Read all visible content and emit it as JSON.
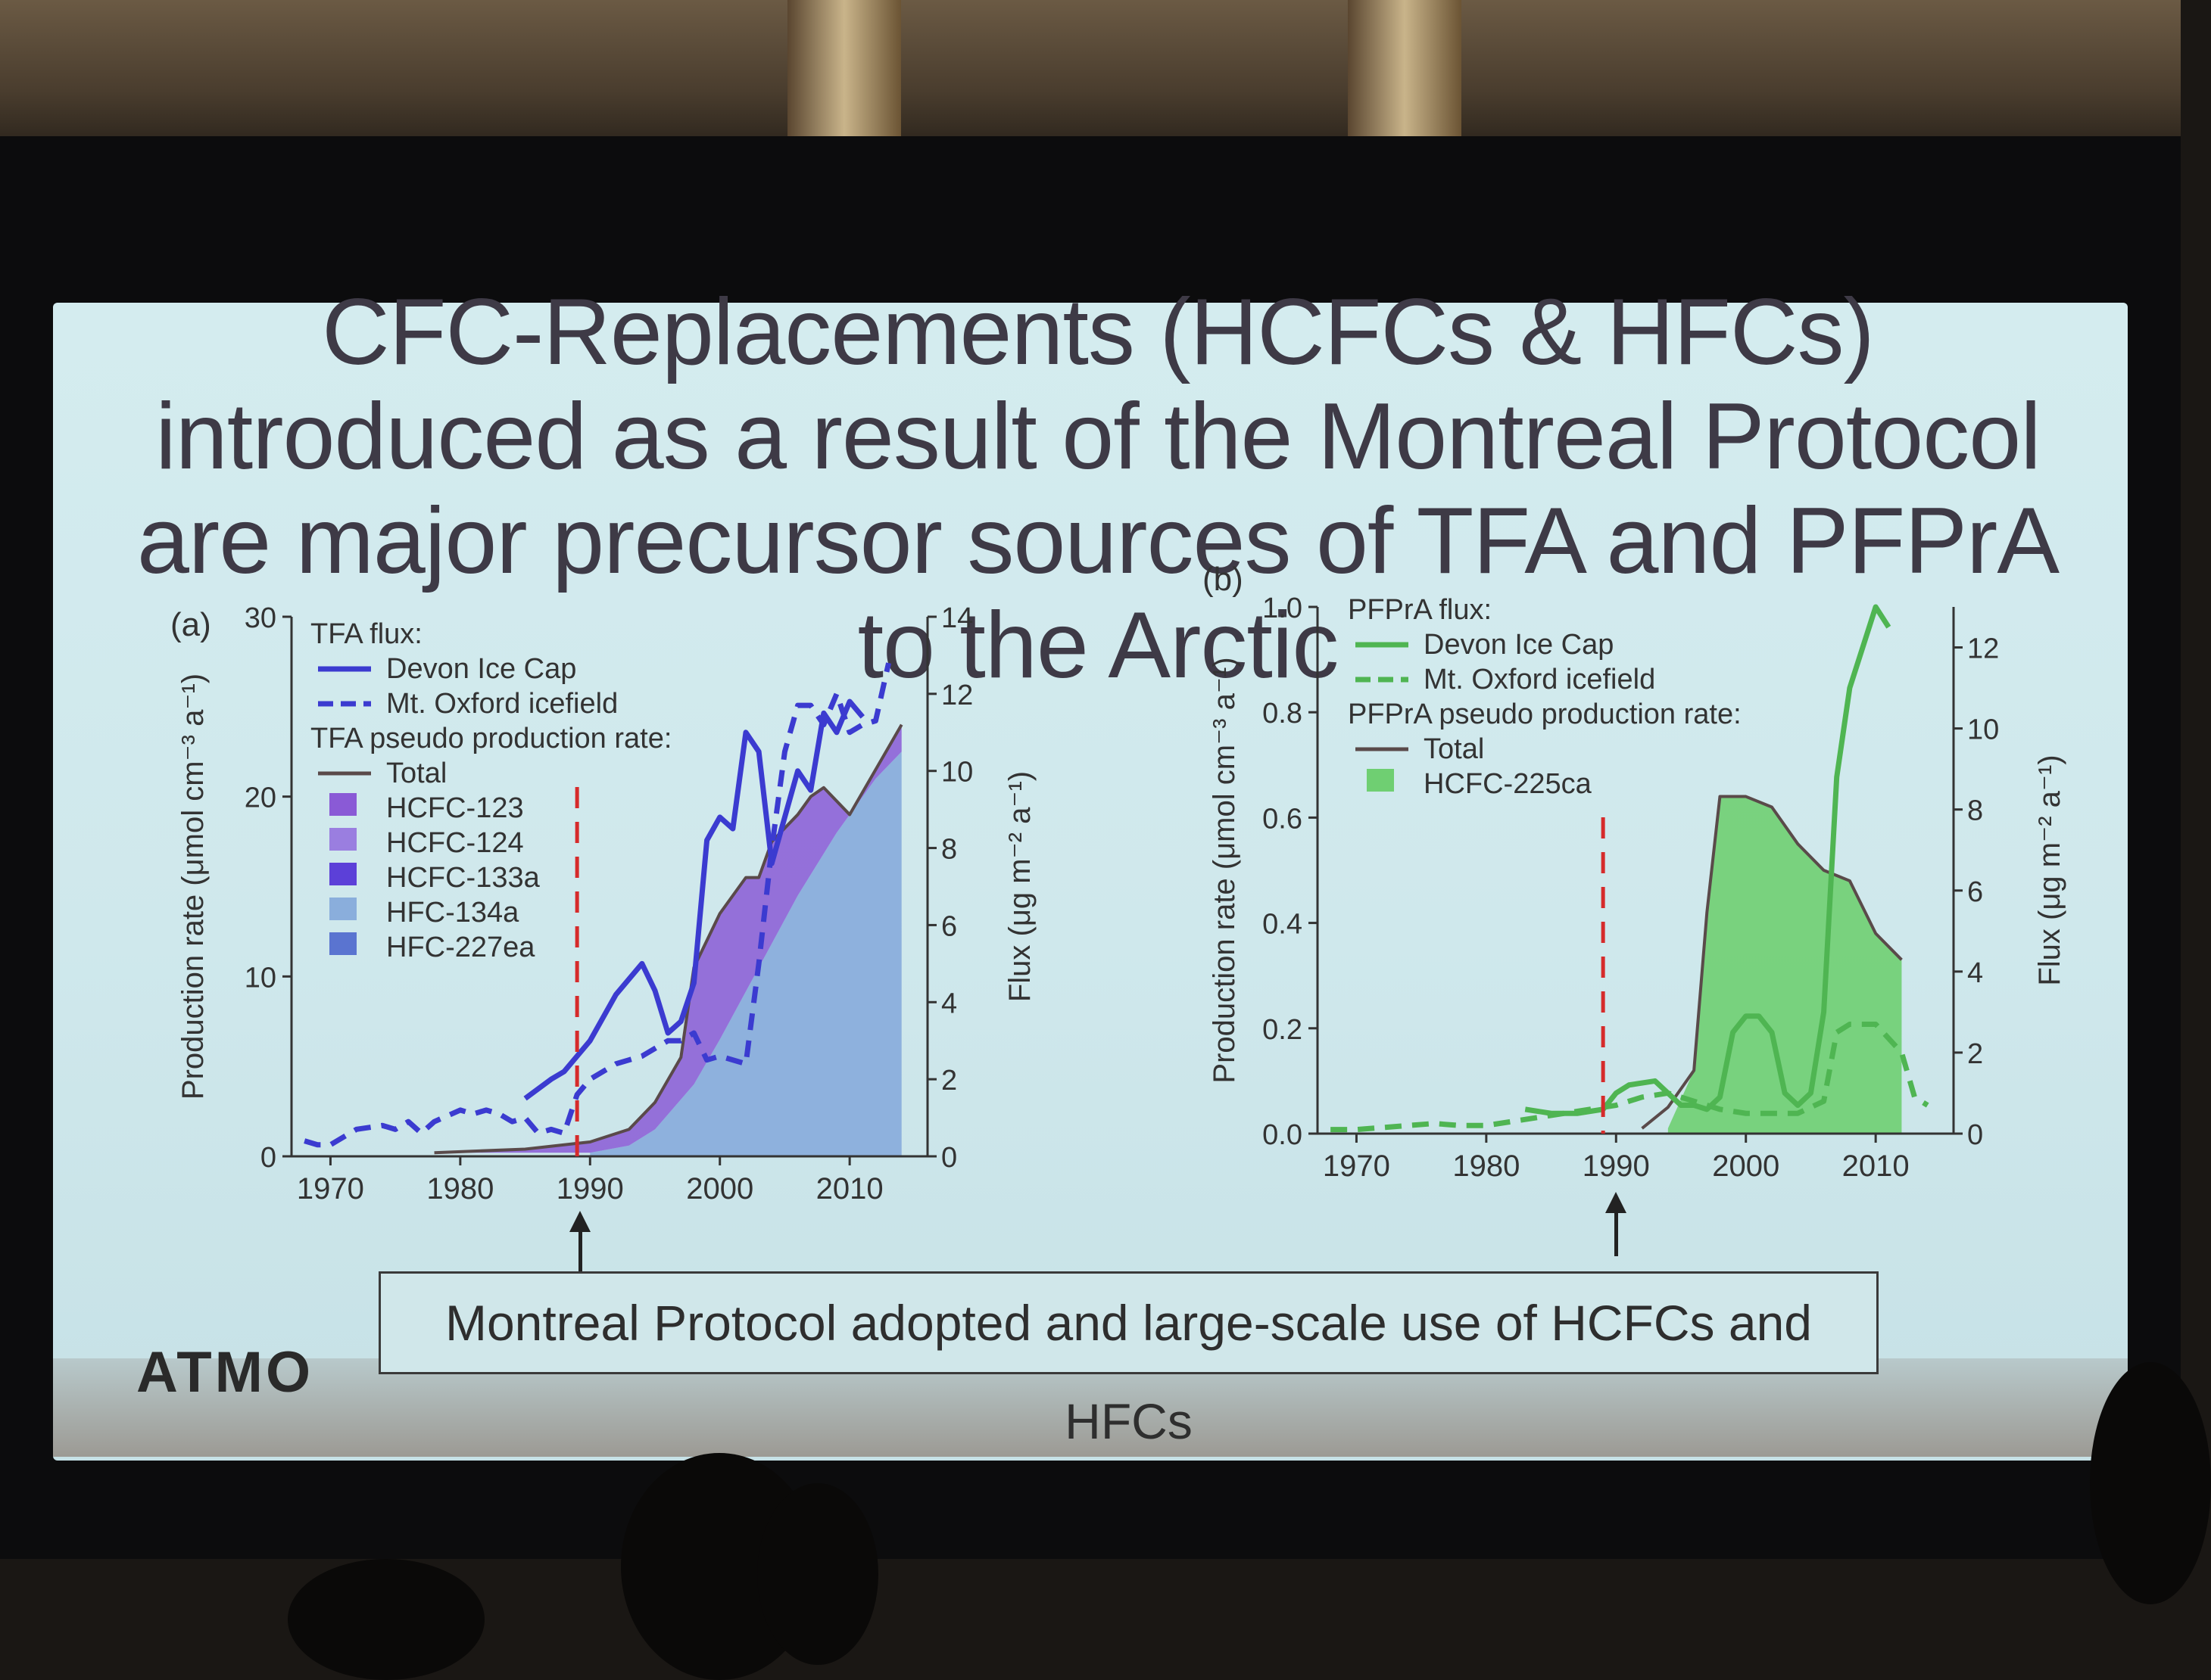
{
  "slide": {
    "title": "CFC-Replacements (HCFCs & HFCs) introduced as a result of the Montreal Protocol are major precursor sources of TFA and PFPrA to the Arctic",
    "annotation": "Montreal Protocol adopted and large-scale use of HCFCs and HFCs",
    "logo_text": "ATMO"
  },
  "colors": {
    "devon_tfa": "#3b3bd0",
    "devon_pfpra": "#4fb552",
    "total_line": "#5a4a4a",
    "hcfc123": "#8a5ad6",
    "hcfc124": "#9a7ee0",
    "hcfc133a": "#5c40d8",
    "hfc134a": "#8aaedc",
    "hfc227ea": "#5a74d0",
    "hcfc225ca": "#6fcf72",
    "marker": "#d62b2b"
  },
  "chart_data": [
    {
      "type": "area",
      "panel": "(a)",
      "ylabel": "Production rate (μmol cm⁻³ a⁻¹)",
      "y2label": "Flux (μg m⁻² a⁻¹)",
      "xlim": [
        1967,
        2016
      ],
      "ylim": [
        0,
        30
      ],
      "y2lim": [
        0,
        14
      ],
      "xticks": [
        "1970",
        "1980",
        "1990",
        "2000",
        "2010"
      ],
      "yticks": [
        "0",
        "10",
        "20",
        "30"
      ],
      "y2ticks": [
        "0",
        "2",
        "4",
        "6",
        "8",
        "10",
        "12",
        "14"
      ],
      "marker_year": 1989,
      "legend": {
        "flux_header": "TFA flux:",
        "flux_entries": [
          "Devon Ice Cap",
          "Mt. Oxford icefield"
        ],
        "production_header": "TFA pseudo production rate:",
        "production_entries": [
          "Total",
          "HCFC-123",
          "HCFC-124",
          "HCFC-133a",
          "HFC-134a",
          "HFC-227ea"
        ]
      },
      "series": [
        {
          "name": "Total",
          "axis": "left",
          "style": "line",
          "x": [
            1978,
            1985,
            1990,
            1993,
            1995,
            1997,
            1998,
            2000,
            2002,
            2003,
            2004,
            2006,
            2007,
            2008,
            2010,
            2012,
            2014
          ],
          "y": [
            0.2,
            0.4,
            0.8,
            1.5,
            3.0,
            5.5,
            10.5,
            13.5,
            15.5,
            15.5,
            17.5,
            19.0,
            20.0,
            20.5,
            19.0,
            21.5,
            24.0
          ]
        },
        {
          "name": "HFC-134a",
          "axis": "left",
          "style": "area",
          "x": [
            1990,
            1993,
            1995,
            1998,
            2000,
            2003,
            2006,
            2009,
            2012,
            2014
          ],
          "y": [
            0.2,
            0.6,
            1.5,
            4.0,
            6.5,
            10.5,
            14.5,
            18.0,
            21.0,
            22.5
          ]
        },
        {
          "name": "Devon Ice Cap",
          "axis": "right",
          "style": "solid",
          "x": [
            1985,
            1987,
            1988,
            1990,
            1992,
            1993,
            1994,
            1995,
            1996,
            1997,
            1998,
            1999,
            2000,
            2001,
            2002,
            2003,
            2004,
            2005,
            2006,
            2007,
            2008,
            2009,
            2010,
            2011
          ],
          "y": [
            1.5,
            2.0,
            2.2,
            3.0,
            4.2,
            4.6,
            5.0,
            4.3,
            3.2,
            3.5,
            4.5,
            8.2,
            8.8,
            8.5,
            11.0,
            10.5,
            7.6,
            8.8,
            10.0,
            9.5,
            11.5,
            11.0,
            11.8,
            11.4
          ]
        },
        {
          "name": "Mt. Oxford icefield",
          "axis": "right",
          "style": "dashed",
          "x": [
            1968,
            1969,
            1970,
            1972,
            1974,
            1975,
            1976,
            1977,
            1978,
            1980,
            1981,
            1982,
            1983,
            1984,
            1985,
            1986,
            1987,
            1988,
            1989,
            1990,
            1992,
            1994,
            1996,
            1997,
            1998,
            1999,
            2000,
            2002,
            2003,
            2004,
            2005,
            2006,
            2007,
            2008,
            2009,
            2010,
            2011,
            2012,
            2013
          ],
          "y": [
            0.4,
            0.3,
            0.3,
            0.7,
            0.8,
            0.7,
            0.9,
            0.6,
            0.9,
            1.2,
            1.1,
            1.2,
            1.1,
            0.9,
            1.0,
            0.6,
            0.7,
            0.6,
            1.6,
            2.0,
            2.4,
            2.6,
            3.0,
            3.0,
            3.2,
            2.5,
            2.6,
            2.4,
            5.0,
            8.0,
            10.5,
            11.7,
            11.7,
            11.2,
            12.0,
            11.0,
            11.2,
            11.3,
            12.8
          ]
        }
      ]
    },
    {
      "type": "area",
      "panel": "(b)",
      "ylabel": "Production rate (μmol cm⁻³ a⁻¹)",
      "y2label": "Flux (μg m⁻² a⁻¹)",
      "xlim": [
        1967,
        2016
      ],
      "ylim": [
        0,
        1.0
      ],
      "y2lim": [
        0,
        13
      ],
      "xticks": [
        "1970",
        "1980",
        "1990",
        "2000",
        "2010"
      ],
      "yticks": [
        "0.0",
        "0.2",
        "0.4",
        "0.6",
        "0.8",
        "1.0"
      ],
      "y2ticks": [
        "0",
        "2",
        "4",
        "6",
        "8",
        "10",
        "12"
      ],
      "marker_year": 1989,
      "legend": {
        "flux_header": "PFPrA flux:",
        "flux_entries": [
          "Devon Ice Cap",
          "Mt. Oxford icefield"
        ],
        "production_header": "PFPrA pseudo production rate:",
        "production_entries": [
          "Total",
          "HCFC-225ca"
        ]
      },
      "series": [
        {
          "name": "Total",
          "axis": "left",
          "style": "line",
          "x": [
            1992,
            1994,
            1996,
            1997,
            1998,
            2000,
            2002,
            2004,
            2006,
            2008,
            2010,
            2012
          ],
          "y": [
            0.01,
            0.05,
            0.12,
            0.42,
            0.64,
            0.64,
            0.62,
            0.55,
            0.5,
            0.48,
            0.38,
            0.33
          ]
        },
        {
          "name": "HCFC-225ca",
          "axis": "left",
          "style": "area",
          "x": [
            1994,
            1996,
            1997,
            1998,
            2000,
            2002,
            2004,
            2006,
            2008,
            2010,
            2012
          ],
          "y": [
            0.01,
            0.12,
            0.42,
            0.64,
            0.64,
            0.62,
            0.55,
            0.5,
            0.48,
            0.38,
            0.33
          ]
        },
        {
          "name": "Devon Ice Cap",
          "axis": "right",
          "style": "solid",
          "x": [
            1983,
            1985,
            1987,
            1989,
            1990,
            1991,
            1993,
            1995,
            1996,
            1997,
            1998,
            1999,
            2000,
            2001,
            2002,
            2003,
            2004,
            2005,
            2006,
            2007,
            2008,
            2009,
            2010,
            2011
          ],
          "y": [
            0.6,
            0.5,
            0.5,
            0.6,
            1.0,
            1.2,
            1.3,
            0.7,
            0.7,
            0.6,
            0.9,
            2.5,
            2.9,
            2.9,
            2.5,
            1.0,
            0.7,
            1.0,
            3.0,
            8.8,
            11.0,
            12.0,
            13.0,
            12.5
          ]
        },
        {
          "name": "Mt. Oxford icefield",
          "axis": "right",
          "style": "dashed",
          "x": [
            1968,
            1970,
            1972,
            1974,
            1976,
            1978,
            1980,
            1982,
            1984,
            1986,
            1988,
            1990,
            1992,
            1994,
            1996,
            1998,
            2000,
            2002,
            2004,
            2006,
            2007,
            2008,
            2010,
            2012,
            2013,
            2014
          ],
          "y": [
            0.1,
            0.1,
            0.15,
            0.2,
            0.25,
            0.2,
            0.2,
            0.3,
            0.4,
            0.5,
            0.6,
            0.7,
            0.9,
            1.0,
            0.8,
            0.6,
            0.5,
            0.5,
            0.5,
            0.8,
            2.5,
            2.7,
            2.7,
            2.0,
            0.9,
            0.7
          ]
        }
      ]
    }
  ]
}
